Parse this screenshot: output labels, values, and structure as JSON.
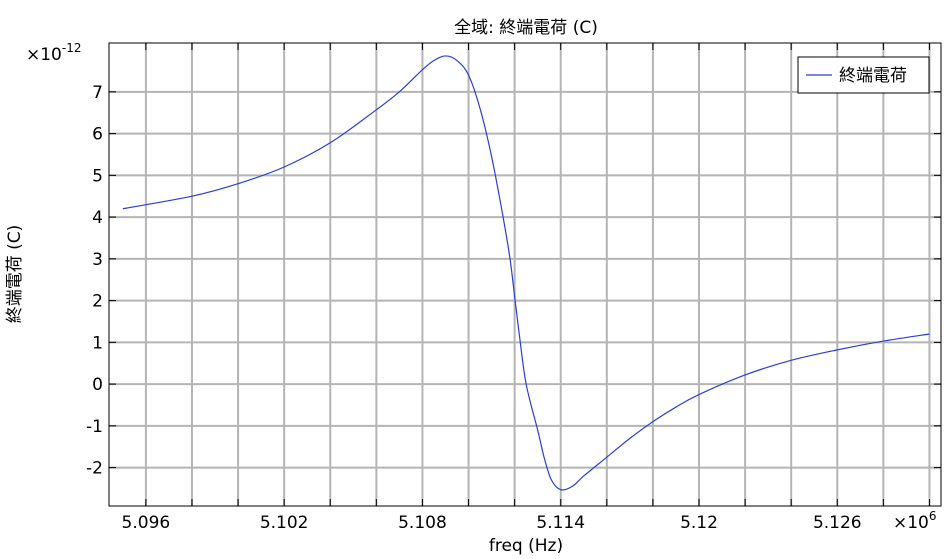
{
  "chart_data": {
    "type": "line",
    "title": "全域: 終端電荷 (C)",
    "xlabel": "freq (Hz)",
    "ylabel": "終端電荷 (C)",
    "x_multiplier": "×10",
    "x_multiplier_exp": "6",
    "y_multiplier": "×10",
    "y_multiplier_exp": "-12",
    "xlim": [
      5.0944,
      5.1305
    ],
    "ylim": [
      -2.92,
      8.17
    ],
    "x_ticks": [
      5.096,
      5.098,
      5.1,
      5.102,
      5.104,
      5.106,
      5.108,
      5.11,
      5.112,
      5.114,
      5.116,
      5.118,
      5.12,
      5.122,
      5.124,
      5.126,
      5.128,
      5.13
    ],
    "x_tick_labels": [
      {
        "value": 5.096,
        "label": "5.096"
      },
      {
        "value": 5.102,
        "label": "5.102"
      },
      {
        "value": 5.108,
        "label": "5.108"
      },
      {
        "value": 5.114,
        "label": "5.114"
      },
      {
        "value": 5.12,
        "label": "5.12"
      },
      {
        "value": 5.126,
        "label": "5.126"
      }
    ],
    "y_tick_labels": [
      {
        "value": 7,
        "label": "7"
      },
      {
        "value": 6,
        "label": "6"
      },
      {
        "value": 5,
        "label": "5"
      },
      {
        "value": 4,
        "label": "4"
      },
      {
        "value": 3,
        "label": "3"
      },
      {
        "value": 2,
        "label": "2"
      },
      {
        "value": 1,
        "label": "1"
      },
      {
        "value": 0,
        "label": "0"
      },
      {
        "value": -1,
        "label": "-1"
      },
      {
        "value": -2,
        "label": "-2"
      }
    ],
    "grid": true,
    "legend_position": "top-right",
    "series": [
      {
        "name": "終端電荷",
        "color": "#2a3fd4",
        "x": [
          5.095,
          5.098,
          5.1,
          5.102,
          5.104,
          5.106,
          5.107,
          5.108,
          5.1085,
          5.109,
          5.1095,
          5.11,
          5.1105,
          5.111,
          5.1115,
          5.1118,
          5.112,
          5.1122,
          5.1125,
          5.113,
          5.1133,
          5.1136,
          5.114,
          5.1145,
          5.115,
          5.116,
          5.117,
          5.118,
          5.119,
          5.12,
          5.122,
          5.124,
          5.126,
          5.128,
          5.13
        ],
        "y": [
          4.2,
          4.5,
          4.8,
          5.2,
          5.78,
          6.57,
          7.0,
          7.53,
          7.75,
          7.86,
          7.75,
          7.4,
          6.6,
          5.45,
          4.0,
          3.0,
          2.1,
          1.2,
          0.0,
          -1.1,
          -1.8,
          -2.3,
          -2.53,
          -2.45,
          -2.2,
          -1.75,
          -1.3,
          -0.9,
          -0.55,
          -0.25,
          0.22,
          0.57,
          0.82,
          1.03,
          1.2
        ]
      }
    ]
  }
}
